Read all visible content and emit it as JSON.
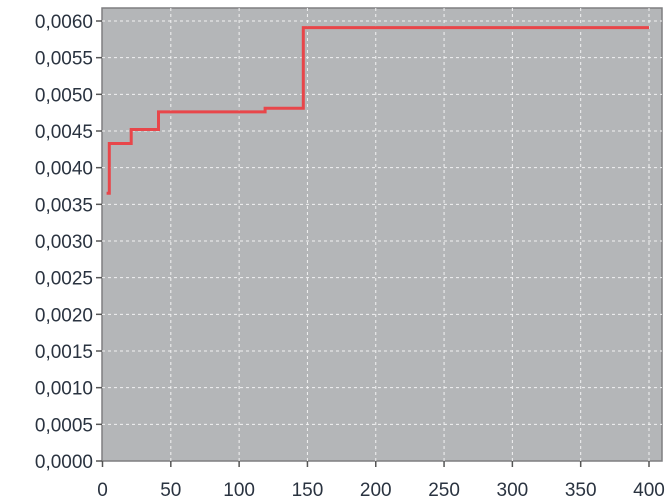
{
  "chart_data": {
    "type": "line",
    "step": true,
    "xlim": [
      0,
      400
    ],
    "ylim": [
      0,
      0.006
    ],
    "x_ticks": [
      0,
      50,
      100,
      150,
      200,
      250,
      300,
      350,
      400
    ],
    "x_tick_labels": [
      "0",
      "50",
      "100",
      "150",
      "200",
      "250",
      "300",
      "350",
      "400"
    ],
    "y_ticks": [
      0,
      0.0005,
      0.001,
      0.0015,
      0.002,
      0.0025,
      0.003,
      0.0035,
      0.004,
      0.0045,
      0.005,
      0.0055,
      0.006
    ],
    "y_tick_labels": [
      "0,0000",
      "0,0005",
      "0,0010",
      "0,0015",
      "0,0020",
      "0,0025",
      "0,0030",
      "0,0035",
      "0,0040",
      "0,0045",
      "0,0050",
      "0,0055",
      "0,0060"
    ],
    "grid": true,
    "background_color": "#b4b6b8",
    "series": [
      {
        "color": "#e8464a",
        "x": [
          3,
          5,
          5,
          21,
          21,
          41,
          41,
          119,
          119,
          147,
          147,
          400
        ],
        "y": [
          0.00365,
          0.00365,
          0.00433,
          0.00433,
          0.00452,
          0.00452,
          0.00476,
          0.00476,
          0.00481,
          0.00481,
          0.00591,
          0.00591
        ]
      }
    ]
  }
}
